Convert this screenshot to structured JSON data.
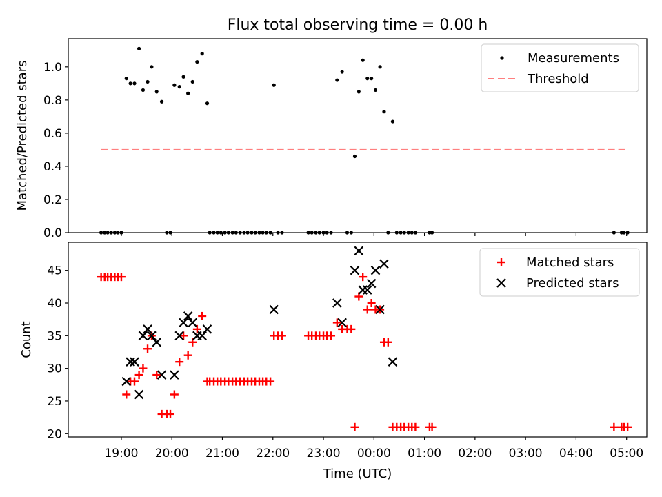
{
  "chart_data": [
    {
      "type": "scatter",
      "title": "Flux total observing time = 0.00 h",
      "xlabel": "",
      "ylabel": "Matched/Predicted stars",
      "xlim_hours": [
        17.95,
        29.4
      ],
      "ylim": [
        0,
        1.17
      ],
      "yticks": [
        0.0,
        0.2,
        0.4,
        0.6,
        0.8,
        1.0
      ],
      "ytick_labels": [
        "0.0",
        "0.2",
        "0.4",
        "0.6",
        "0.8",
        "1.0"
      ],
      "legend": [
        "Measurements",
        "Threshold"
      ],
      "legend_position": "top-right",
      "colors": {
        "measurements": "#000000",
        "threshold": "#ff7f7f"
      },
      "threshold": {
        "value": 0.5,
        "x_start": 18.6,
        "x_end": 29.0
      },
      "series": [
        {
          "name": "Measurements",
          "points": [
            [
              18.6,
              0
            ],
            [
              18.67,
              0
            ],
            [
              18.73,
              0
            ],
            [
              18.8,
              0
            ],
            [
              18.87,
              0
            ],
            [
              18.93,
              0
            ],
            [
              19.0,
              0
            ],
            [
              19.1,
              0.93
            ],
            [
              19.18,
              0.9
            ],
            [
              19.26,
              0.9
            ],
            [
              19.35,
              1.11
            ],
            [
              19.43,
              0.86
            ],
            [
              19.52,
              0.91
            ],
            [
              19.6,
              1.0
            ],
            [
              19.7,
              0.85
            ],
            [
              19.8,
              0.79
            ],
            [
              19.9,
              0
            ],
            [
              19.97,
              0
            ],
            [
              20.05,
              0.89
            ],
            [
              20.15,
              0.88
            ],
            [
              20.23,
              0.94
            ],
            [
              20.32,
              0.84
            ],
            [
              20.41,
              0.91
            ],
            [
              20.5,
              1.03
            ],
            [
              20.6,
              1.08
            ],
            [
              20.7,
              0.78
            ],
            [
              20.75,
              0
            ],
            [
              20.83,
              0
            ],
            [
              20.9,
              0
            ],
            [
              20.97,
              0
            ],
            [
              21.05,
              0
            ],
            [
              21.12,
              0
            ],
            [
              21.2,
              0
            ],
            [
              21.27,
              0
            ],
            [
              21.35,
              0
            ],
            [
              21.43,
              0
            ],
            [
              21.5,
              0
            ],
            [
              21.58,
              0
            ],
            [
              21.65,
              0
            ],
            [
              21.73,
              0
            ],
            [
              21.8,
              0
            ],
            [
              21.87,
              0
            ],
            [
              21.95,
              0
            ],
            [
              22.02,
              0.89
            ],
            [
              22.1,
              0
            ],
            [
              22.18,
              0
            ],
            [
              22.7,
              0
            ],
            [
              22.77,
              0
            ],
            [
              22.85,
              0
            ],
            [
              22.92,
              0
            ],
            [
              23.0,
              0
            ],
            [
              23.07,
              0
            ],
            [
              23.15,
              0
            ],
            [
              23.27,
              0.92
            ],
            [
              23.37,
              0.97
            ],
            [
              23.47,
              0
            ],
            [
              23.55,
              0
            ],
            [
              23.62,
              0.46
            ],
            [
              23.7,
              0.85
            ],
            [
              23.78,
              1.04
            ],
            [
              23.87,
              0.93
            ],
            [
              23.95,
              0.93
            ],
            [
              24.03,
              0.86
            ],
            [
              24.12,
              1.0
            ],
            [
              24.2,
              0.73
            ],
            [
              24.28,
              0
            ],
            [
              24.37,
              0.67
            ],
            [
              24.45,
              0
            ],
            [
              24.53,
              0
            ],
            [
              24.6,
              0
            ],
            [
              24.68,
              0
            ],
            [
              24.75,
              0
            ],
            [
              24.82,
              0
            ],
            [
              25.1,
              0
            ],
            [
              25.15,
              0
            ],
            [
              28.75,
              0
            ],
            [
              28.9,
              0
            ],
            [
              28.95,
              0
            ],
            [
              29.02,
              0
            ]
          ]
        }
      ]
    },
    {
      "type": "scatter",
      "title": "",
      "xlabel": "Time (UTC)",
      "ylabel": "Count",
      "xlim_hours": [
        17.95,
        29.4
      ],
      "ylim": [
        19.5,
        49.3
      ],
      "yticks": [
        20,
        25,
        30,
        35,
        40,
        45
      ],
      "ytick_labels": [
        "20",
        "25",
        "30",
        "35",
        "40",
        "45"
      ],
      "xticks_hours": [
        19,
        20,
        21,
        22,
        23,
        24,
        25,
        26,
        27,
        28,
        29
      ],
      "xtick_labels": [
        "19:00",
        "20:00",
        "21:00",
        "22:00",
        "23:00",
        "00:00",
        "01:00",
        "02:00",
        "03:00",
        "04:00",
        "05:00"
      ],
      "legend": [
        "Matched stars",
        "Predicted stars"
      ],
      "legend_position": "top-right",
      "colors": {
        "matched": "#ff0000",
        "predicted": "#000000"
      },
      "series": [
        {
          "name": "Matched stars",
          "points": [
            [
              18.6,
              44
            ],
            [
              18.67,
              44
            ],
            [
              18.73,
              44
            ],
            [
              18.8,
              44
            ],
            [
              18.87,
              44
            ],
            [
              18.93,
              44
            ],
            [
              19.0,
              44
            ],
            [
              19.1,
              26
            ],
            [
              19.18,
              28
            ],
            [
              19.26,
              28
            ],
            [
              19.35,
              29
            ],
            [
              19.43,
              30
            ],
            [
              19.52,
              33
            ],
            [
              19.6,
              35
            ],
            [
              19.7,
              29
            ],
            [
              19.8,
              23
            ],
            [
              19.9,
              23
            ],
            [
              19.97,
              23
            ],
            [
              20.05,
              26
            ],
            [
              20.15,
              31
            ],
            [
              20.23,
              35
            ],
            [
              20.32,
              32
            ],
            [
              20.41,
              34
            ],
            [
              20.5,
              36
            ],
            [
              20.6,
              38
            ],
            [
              20.7,
              28
            ],
            [
              20.75,
              28
            ],
            [
              20.83,
              28
            ],
            [
              20.9,
              28
            ],
            [
              20.97,
              28
            ],
            [
              21.05,
              28
            ],
            [
              21.12,
              28
            ],
            [
              21.2,
              28
            ],
            [
              21.27,
              28
            ],
            [
              21.35,
              28
            ],
            [
              21.43,
              28
            ],
            [
              21.5,
              28
            ],
            [
              21.58,
              28
            ],
            [
              21.65,
              28
            ],
            [
              21.73,
              28
            ],
            [
              21.8,
              28
            ],
            [
              21.87,
              28
            ],
            [
              21.95,
              28
            ],
            [
              22.02,
              35
            ],
            [
              22.1,
              35
            ],
            [
              22.18,
              35
            ],
            [
              22.7,
              35
            ],
            [
              22.77,
              35
            ],
            [
              22.85,
              35
            ],
            [
              22.92,
              35
            ],
            [
              23.0,
              35
            ],
            [
              23.07,
              35
            ],
            [
              23.15,
              35
            ],
            [
              23.27,
              37
            ],
            [
              23.37,
              36
            ],
            [
              23.47,
              36
            ],
            [
              23.55,
              36
            ],
            [
              23.62,
              21
            ],
            [
              23.7,
              41
            ],
            [
              23.78,
              44
            ],
            [
              23.87,
              39
            ],
            [
              23.95,
              40
            ],
            [
              24.03,
              39
            ],
            [
              24.12,
              39
            ],
            [
              24.2,
              34
            ],
            [
              24.28,
              34
            ],
            [
              24.37,
              21
            ],
            [
              24.45,
              21
            ],
            [
              24.53,
              21
            ],
            [
              24.6,
              21
            ],
            [
              24.68,
              21
            ],
            [
              24.75,
              21
            ],
            [
              24.82,
              21
            ],
            [
              25.1,
              21
            ],
            [
              25.15,
              21
            ],
            [
              28.75,
              21
            ],
            [
              28.9,
              21
            ],
            [
              28.95,
              21
            ],
            [
              29.02,
              21
            ]
          ]
        },
        {
          "name": "Predicted stars",
          "points": [
            [
              19.1,
              28
            ],
            [
              19.18,
              31
            ],
            [
              19.26,
              31
            ],
            [
              19.35,
              26
            ],
            [
              19.43,
              35
            ],
            [
              19.52,
              36
            ],
            [
              19.6,
              35
            ],
            [
              19.7,
              34
            ],
            [
              19.8,
              29
            ],
            [
              20.05,
              29
            ],
            [
              20.15,
              35
            ],
            [
              20.23,
              37
            ],
            [
              20.32,
              38
            ],
            [
              20.41,
              37
            ],
            [
              20.5,
              35
            ],
            [
              20.6,
              35
            ],
            [
              20.7,
              36
            ],
            [
              22.02,
              39
            ],
            [
              23.27,
              40
            ],
            [
              23.37,
              37
            ],
            [
              23.62,
              45
            ],
            [
              23.7,
              48
            ],
            [
              23.78,
              42
            ],
            [
              23.87,
              42
            ],
            [
              23.95,
              43
            ],
            [
              24.03,
              45
            ],
            [
              24.12,
              39
            ],
            [
              24.2,
              46
            ],
            [
              24.37,
              31
            ]
          ]
        }
      ]
    }
  ]
}
